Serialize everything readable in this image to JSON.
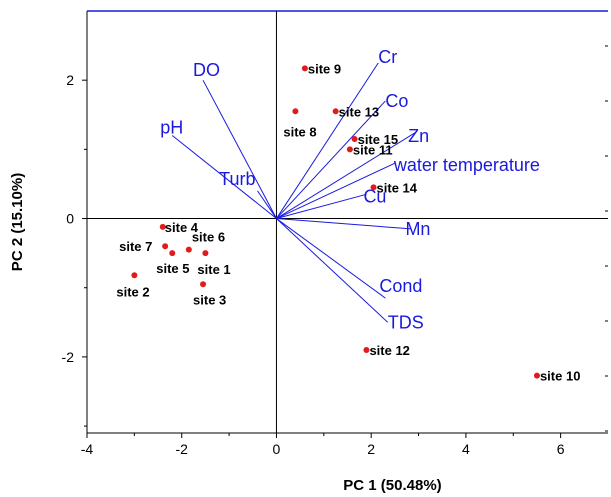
{
  "chart_data": {
    "type": "scatter",
    "title": "",
    "xlabel": "PC 1 (50.48%)",
    "ylabel": "PC 2 (15.10%)",
    "xlim": [
      -4,
      7
    ],
    "ylim": [
      -3.1,
      3
    ],
    "xticks": [
      -4,
      -2,
      0,
      2,
      4,
      6
    ],
    "yticks": [
      -2,
      0,
      2
    ],
    "grid": false,
    "colors": {
      "points": "#e31a1c",
      "loadings": "#1a1adf",
      "axes": "#000000"
    },
    "scores": [
      {
        "label": "site 1",
        "x": -1.5,
        "y": -0.5
      },
      {
        "label": "site 2",
        "x": -3.0,
        "y": -0.82
      },
      {
        "label": "site 3",
        "x": -1.55,
        "y": -0.95
      },
      {
        "label": "site 4",
        "x": -2.4,
        "y": -0.12
      },
      {
        "label": "site 5",
        "x": -2.2,
        "y": -0.5
      },
      {
        "label": "site 6",
        "x": -1.85,
        "y": -0.45
      },
      {
        "label": "site 7",
        "x": -2.35,
        "y": -0.4
      },
      {
        "label": "site 8",
        "x": 0.4,
        "y": 1.55
      },
      {
        "label": "site 9",
        "x": 0.6,
        "y": 2.17
      },
      {
        "label": "site 10",
        "x": 5.5,
        "y": -2.27
      },
      {
        "label": "site 11",
        "x": 1.55,
        "y": 1.0
      },
      {
        "label": "site 12",
        "x": 1.9,
        "y": -1.9
      },
      {
        "label": "site 13",
        "x": 1.25,
        "y": 1.55
      },
      {
        "label": "site 14",
        "x": 2.05,
        "y": 0.45
      },
      {
        "label": "site 15",
        "x": 1.65,
        "y": 1.15
      }
    ],
    "loadings": [
      {
        "label": "DO",
        "x": -1.55,
        "y": 2.0
      },
      {
        "label": "pH",
        "x": -2.2,
        "y": 1.2
      },
      {
        "label": "Turb",
        "x": -0.4,
        "y": 0.4
      },
      {
        "label": "Cr",
        "x": 2.15,
        "y": 2.25
      },
      {
        "label": "Co",
        "x": 2.3,
        "y": 1.7
      },
      {
        "label": "Zn",
        "x": 2.95,
        "y": 1.25
      },
      {
        "label": "water temperature",
        "x": 2.5,
        "y": 0.8
      },
      {
        "label": "Cu",
        "x": 1.9,
        "y": 0.35
      },
      {
        "label": "Mn",
        "x": 2.85,
        "y": -0.15
      },
      {
        "label": "Cond",
        "x": 2.3,
        "y": -1.15
      },
      {
        "label": "TDS",
        "x": 2.35,
        "y": -1.5
      }
    ]
  }
}
